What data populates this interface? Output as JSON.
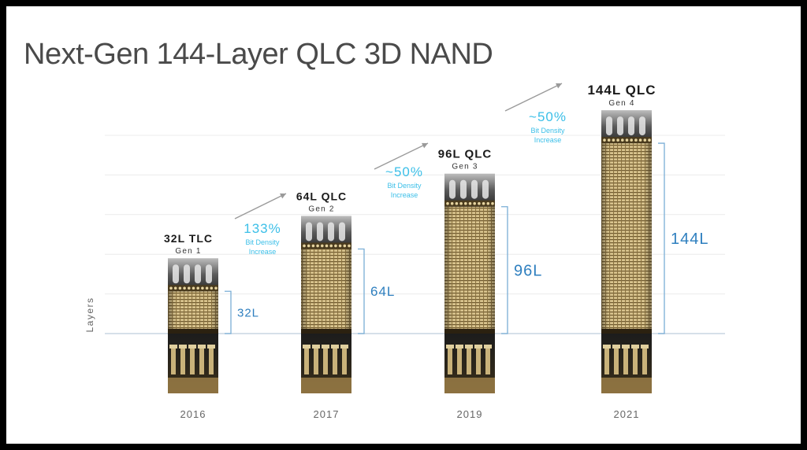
{
  "slide": {
    "title": "Next-Gen 144-Layer QLC 3D NAND"
  },
  "chart_data": {
    "type": "bar",
    "title": "Next-Gen 144-Layer QLC 3D NAND",
    "xlabel": "",
    "ylabel": "Layers",
    "categories": [
      "2016",
      "2017",
      "2019",
      "2021"
    ],
    "series": [
      {
        "values": [
          32,
          64,
          96,
          144
        ],
        "value_labels": [
          "32L",
          "64L",
          "96L",
          "144L"
        ],
        "product_labels": [
          "32L TLC",
          "64L QLC",
          "96L QLC",
          "144L QLC"
        ],
        "generation_labels": [
          "Gen 1",
          "Gen 2",
          "Gen 3",
          "Gen 4"
        ]
      }
    ],
    "ylim": [
      0,
      160
    ],
    "grid": true,
    "annotations": [
      {
        "between": [
          "2016",
          "2017"
        ],
        "value": "133%",
        "text": "Bit Density Increase"
      },
      {
        "between": [
          "2017",
          "2019"
        ],
        "value": "~50%",
        "text": "Bit Density Increase"
      },
      {
        "between": [
          "2019",
          "2021"
        ],
        "value": "~50%",
        "text": "Bit Density Increase"
      }
    ],
    "colors": {
      "accent": "#3bbfe8",
      "value_label": "#2e7fbf",
      "bracket": "#7aaed6",
      "stack_light": "#e4cf9c",
      "stack_dark": "#7a6130",
      "base": "#1a1a1a",
      "axis_text": "#666666",
      "arrow": "#9a9a9a"
    }
  }
}
